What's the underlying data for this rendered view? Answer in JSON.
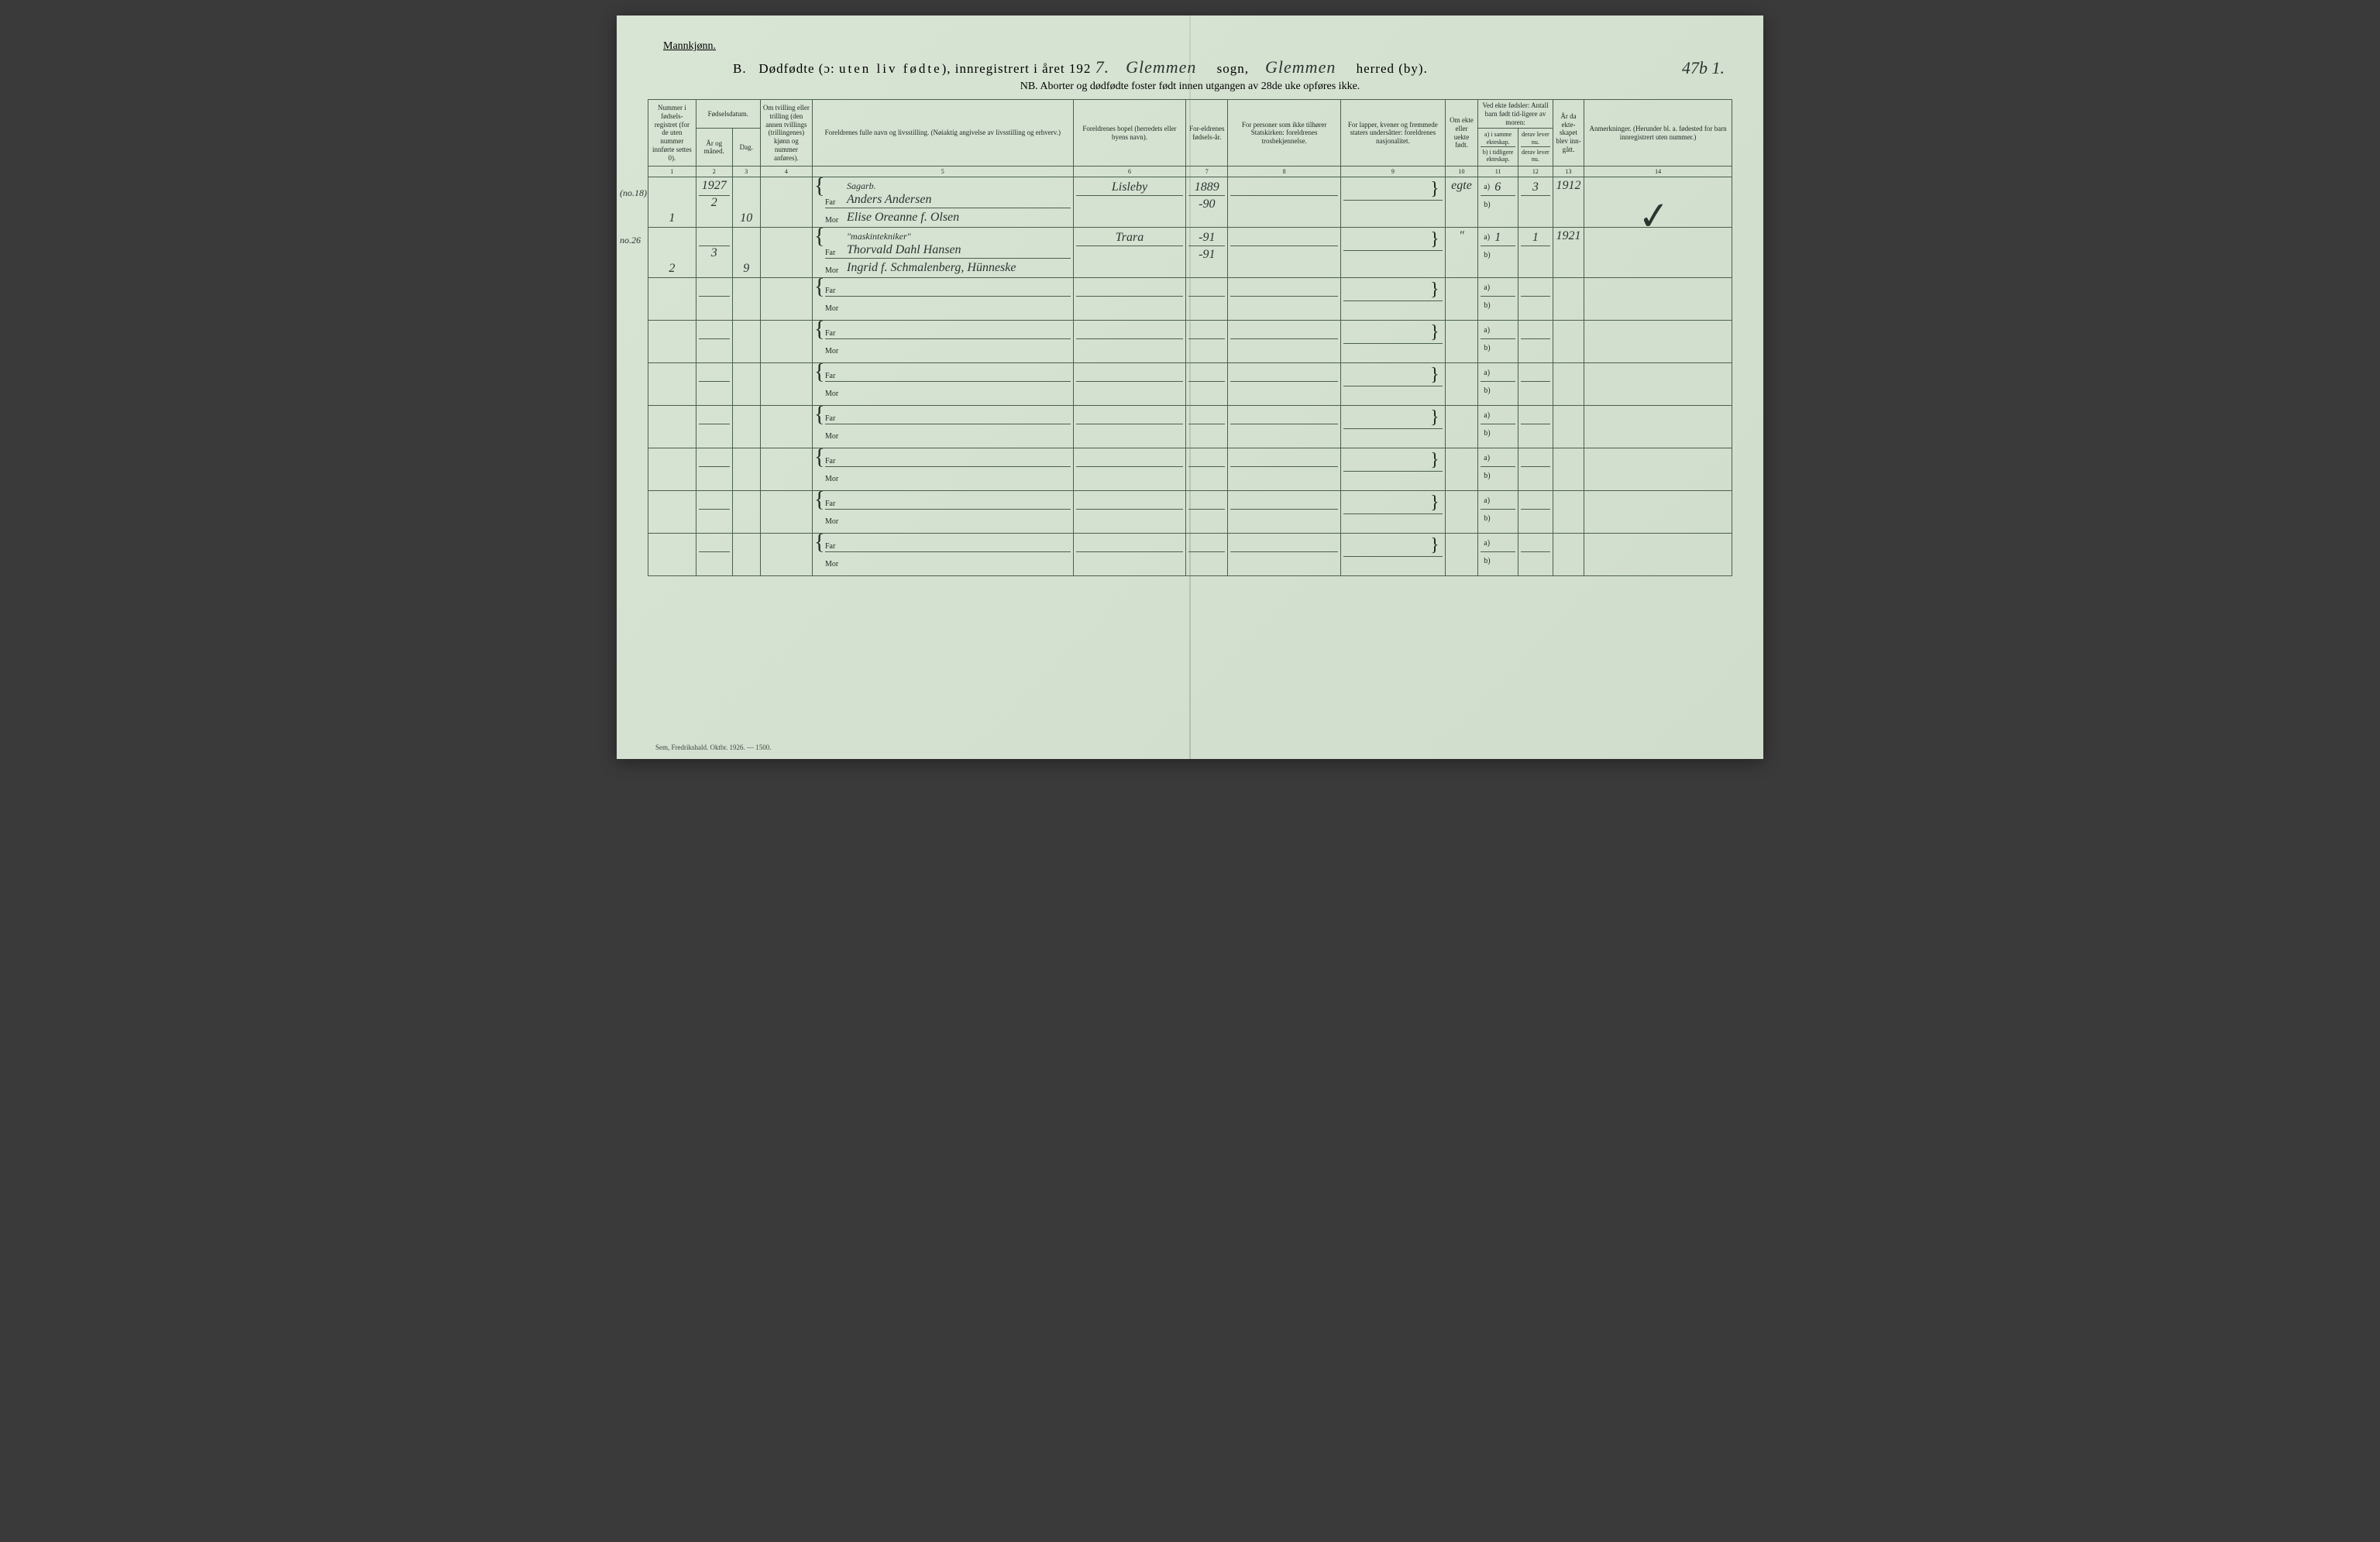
{
  "colors": {
    "paper": "#d8e4d4",
    "ink": "#1a2a20",
    "rule": "#4a6050",
    "background": "#3a3a3a"
  },
  "header": {
    "gender": "Mannkjønn.",
    "section_letter": "B.",
    "title_main": "Dødfødte (ɔ:",
    "title_spaced": "uten liv fødte",
    "title_after": "), innregistrert i året 192",
    "year_hand": "7.",
    "sogn_hand": "Glemmen",
    "sogn_label": "sogn,",
    "herred_hand": "Glemmen",
    "herred_label": "herred (by).",
    "page_hand": "47b 1.",
    "nb": "NB.  Aborter og dødfødte foster født innen utgangen av 28de uke opføres ikke."
  },
  "columns": {
    "c1": "Nummer i fødsels-registret (for de uten nummer innførte settes 0).",
    "c2_group": "Fødselsdatum.",
    "c2": "År og måned.",
    "c3": "Dag.",
    "c4": "Om tvilling eller trilling (den annen tvillings (trillingenes) kjønn og nummer anføres).",
    "c5": "Foreldrenes fulle navn og livsstilling.\n(Nøiaktig angivelse av livsstilling og erhverv.)",
    "c6": "Foreldrenes bopel (herredets eller byens navn).",
    "c7": "For-eldrenes fødsels-år.",
    "c8": "For personer som ikke tilhører Statskirken: foreldrenes trosbekjennelse.",
    "c9": "For lapper, kvener og fremmede staters undersåtter: foreldrenes nasjonalitet.",
    "c10": "Om ekte eller uekte født.",
    "c11_group": "Ved ekte fødsler: Antall barn født tid-ligere av moren:",
    "c11a": "a) i samme ekteskap.",
    "c11b": "b) i tidligere ekteskap.",
    "c12a": "derav lever nu.",
    "c12b": "derav lever nu.",
    "c13": "År da ekte-skapet blev inn-gått.",
    "c14": "Anmerkninger.\n(Herunder bl. a. fødested for barn innregistrert uten nummer.)"
  },
  "colnums": [
    "1",
    "2",
    "3",
    "4",
    "5",
    "6",
    "7",
    "8",
    "9",
    "10",
    "11",
    "12",
    "13",
    "14"
  ],
  "far_label": "Far",
  "mor_label": "Mor",
  "ab_a": "a)",
  "ab_b": "b)",
  "margin_notes": {
    "row1": "(no.18)",
    "row2": "no.26"
  },
  "rows": [
    {
      "num": "1",
      "year_month_top": "1927",
      "year_month": "2",
      "day": "10",
      "far_occ": "Sagarb.",
      "far_name": "Anders Andersen",
      "mor_name": "Elise Oreanne f. Olsen",
      "bopel": "Lisleby",
      "far_year": "1889",
      "mor_year": "-90",
      "ekte": "egte",
      "a_val": "6",
      "a_lever": "3",
      "year_married": "1912"
    },
    {
      "num": "2",
      "year_month": "3",
      "day": "9",
      "far_occ": "\"maskintekniker\"",
      "far_name": "Thorvald Dahl Hansen",
      "mor_name": "Ingrid f. Schmalenberg, Hünneske",
      "bopel": "Trara",
      "far_year": "-91",
      "mor_year": "-91",
      "ekte": "\"",
      "a_val": "1",
      "a_lever": "1",
      "year_married": "1921"
    }
  ],
  "footer": "Sem, Fredrikshald. Oktbr. 1926. — 1500.",
  "checkmark": "✓"
}
